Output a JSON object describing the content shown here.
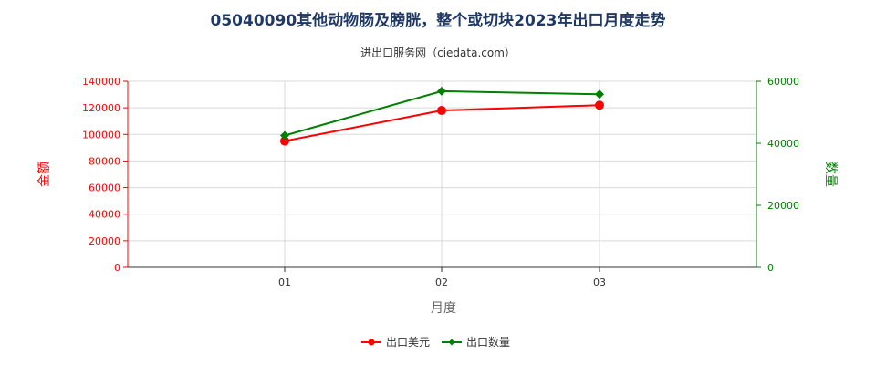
{
  "chart_data": {
    "type": "line",
    "title": "05040090其他动物肠及膀胱，整个或切块2023年出口月度走势",
    "subtitle": "进出口服务网（ciedata.com）",
    "xlabel": "月度",
    "ylabel_left": "金额",
    "ylabel_right": "数量",
    "categories": [
      "01",
      "02",
      "03"
    ],
    "ylim_left": [
      0,
      140000
    ],
    "ylim_right": [
      0,
      60000
    ],
    "yticks_left": [
      "0",
      "20000",
      "40000",
      "60000",
      "80000",
      "100000",
      "120000",
      "140000"
    ],
    "yticks_right": [
      "0",
      "20000",
      "40000",
      "60000"
    ],
    "grid": true,
    "legend_position": "bottom-center",
    "series": [
      {
        "name": "出口美元",
        "axis": "left",
        "color": "#ff0000",
        "marker": "circle",
        "values": [
          95000,
          118000,
          122000
        ]
      },
      {
        "name": "出口数量",
        "axis": "right",
        "color": "#008000",
        "marker": "diamond",
        "values": [
          42500,
          56800,
          55800
        ]
      }
    ]
  }
}
